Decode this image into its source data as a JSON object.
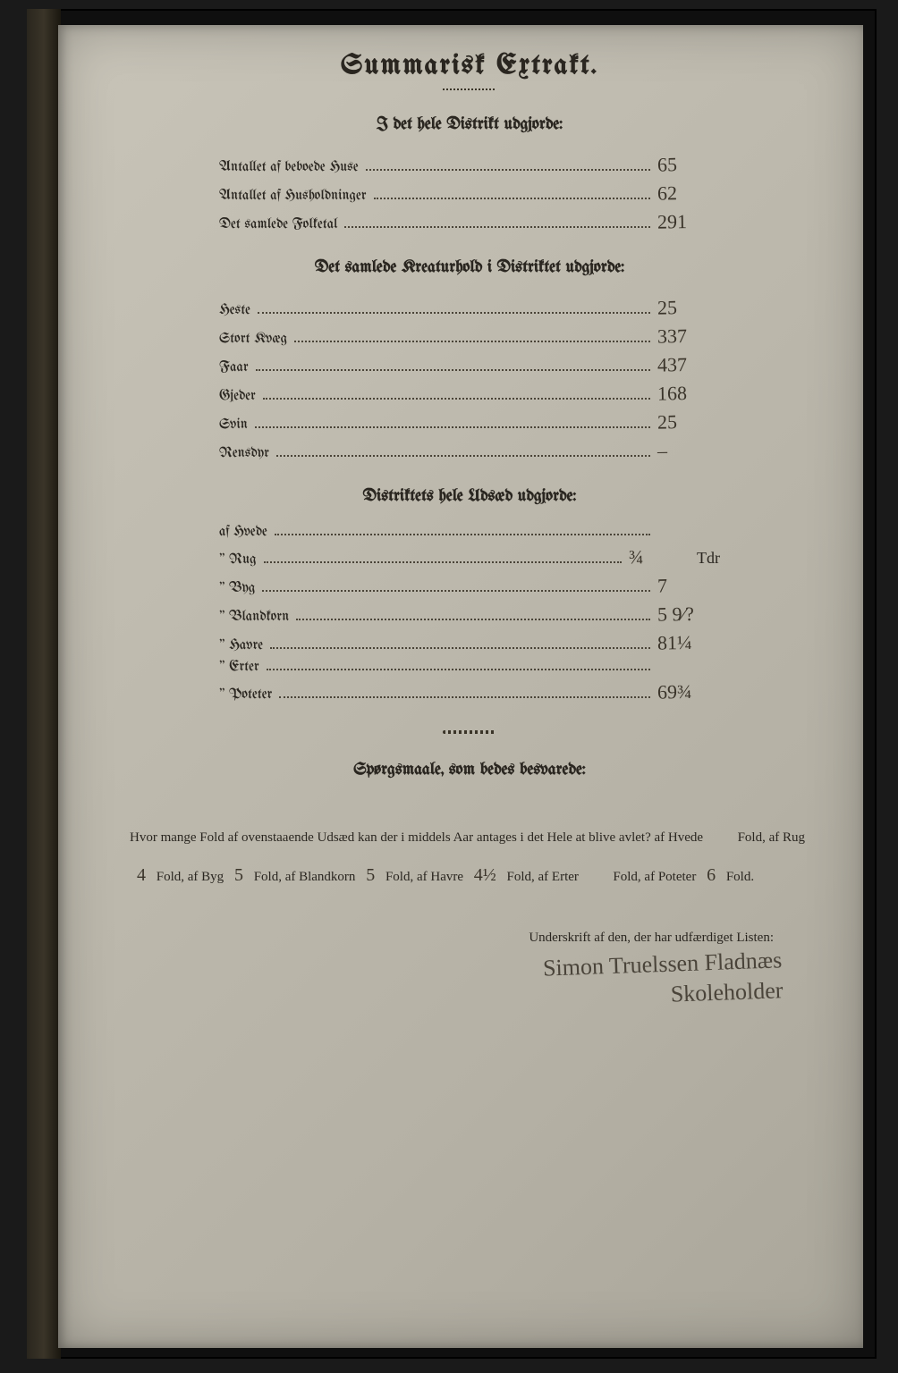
{
  "title": "Summarisk Extrakt.",
  "sections": {
    "district": {
      "heading": "I det hele Distrikt udgjorde:",
      "rows": [
        {
          "label": "Antallet af beboede Huse",
          "value": "65"
        },
        {
          "label": "Antallet af Husholdninger",
          "value": "62"
        },
        {
          "label": "Det samlede Folketal",
          "value": "291"
        }
      ]
    },
    "livestock": {
      "heading": "Det samlede Kreaturhold i Distriktet udgjorde:",
      "rows": [
        {
          "label": "Heste",
          "value": "25"
        },
        {
          "label": "Stort Kvæg",
          "value": "337"
        },
        {
          "label": "Faar",
          "value": "437"
        },
        {
          "label": "Gjeder",
          "value": "168"
        },
        {
          "label": "Svin",
          "value": "25"
        },
        {
          "label": "Rensdyr",
          "value": "–"
        }
      ]
    },
    "seed": {
      "heading": "Distriktets hele Udsæd udgjorde:",
      "rows": [
        {
          "label": "af Hvede",
          "value": ""
        },
        {
          "label": "\" Rug",
          "value": "¾",
          "unit": "Tdr"
        },
        {
          "label": "\" Byg",
          "value": "7"
        },
        {
          "label": "\" Blandkorn",
          "value": "5 9⁄?"
        },
        {
          "label": "\" Havre",
          "value": "81¼"
        },
        {
          "label": "\" Erter",
          "value": ""
        },
        {
          "label": "\" Poteter",
          "value": "69¾"
        }
      ]
    }
  },
  "question": {
    "heading": "Spørgsmaale, som bedes besvarede:",
    "intro": "Hvor mange Fold af ovenstaaende Udsæd kan der i middels Aar antages i det Hele at blive avlet?",
    "parts": [
      {
        "pre": "af Hvede",
        "val": "",
        "post": "Fold,"
      },
      {
        "pre": "af Rug",
        "val": "4",
        "post": "Fold,"
      },
      {
        "pre": "af Byg",
        "val": "5",
        "post": "Fold,"
      },
      {
        "pre": "af Blandkorn",
        "val": "5",
        "post": "Fold,"
      },
      {
        "pre": "af Havre",
        "val": "4½",
        "post": "Fold,"
      },
      {
        "pre": "af Erter",
        "val": "",
        "post": "Fold,"
      },
      {
        "pre": "af Poteter",
        "val": "6",
        "post": "Fold."
      }
    ]
  },
  "signature": {
    "label": "Underskrift af den, der har udfærdiget Listen:",
    "name": "Simon Truelssen Fladnæs",
    "role": "Skoleholder"
  },
  "colors": {
    "page_bg": "#bdb9ad",
    "ink": "#2a2620",
    "frame": "#1a1a1a"
  }
}
